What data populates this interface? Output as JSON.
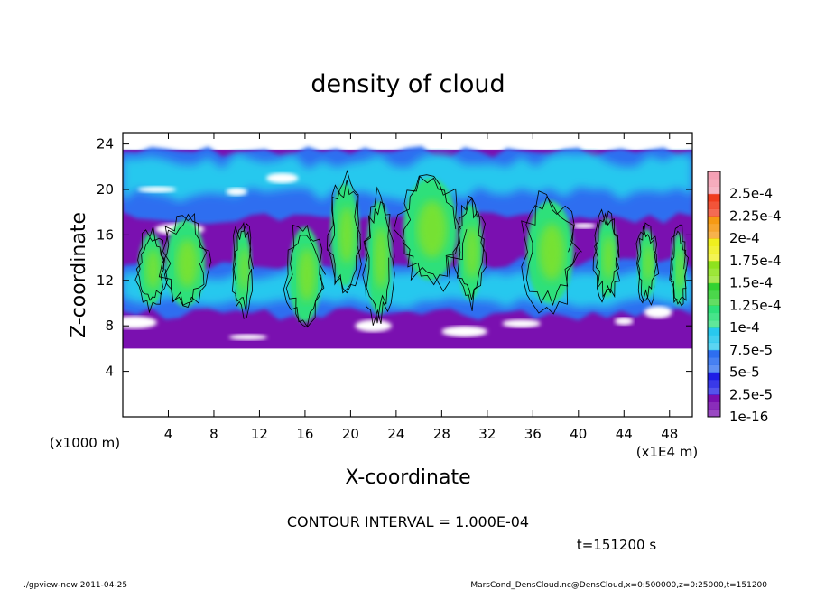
{
  "chart_data": {
    "type": "heatmap",
    "title": "density of cloud",
    "xlabel": "X-coordinate",
    "ylabel": "Z-coordinate",
    "x_unit_label": "(x1E4 m)",
    "y_unit_label": "(x1000 m)",
    "xlim": [
      0,
      50
    ],
    "ylim": [
      0,
      25
    ],
    "x_ticks": [
      4,
      8,
      12,
      16,
      20,
      24,
      28,
      32,
      36,
      40,
      44,
      48
    ],
    "y_ticks": [
      4,
      8,
      12,
      16,
      20,
      24
    ],
    "cloud_layer_range": [
      6,
      23.5
    ],
    "colorbar": {
      "levels": [
        {
          "label": "1e-16",
          "color": "#7a10b0"
        },
        {
          "label": "2.5e-5",
          "color": "#1e1ee6"
        },
        {
          "label": "5e-5",
          "color": "#2e6ef0"
        },
        {
          "label": "7.5e-5",
          "color": "#28c8ee"
        },
        {
          "label": "1e-4",
          "color": "#2ee07a"
        },
        {
          "label": "1.25e-4",
          "color": "#32d232"
        },
        {
          "label": "1.5e-4",
          "color": "#8ee21e"
        },
        {
          "label": "1.75e-4",
          "color": "#f0f01e"
        },
        {
          "label": "2e-4",
          "color": "#f59a14"
        },
        {
          "label": "2.25e-4",
          "color": "#f03c1e"
        },
        {
          "label": "2.5e-4",
          "color": "#f5a0b4"
        }
      ]
    }
  },
  "annotations": {
    "contour_interval": "CONTOUR INTERVAL = 1.000E-04",
    "time": "t=151200 s",
    "footer_left": "./gpview-new  2011-04-25",
    "footer_right": "MarsCond_DensCloud.nc@DensCloud,x=0:500000,z=0:25000,t=151200"
  }
}
